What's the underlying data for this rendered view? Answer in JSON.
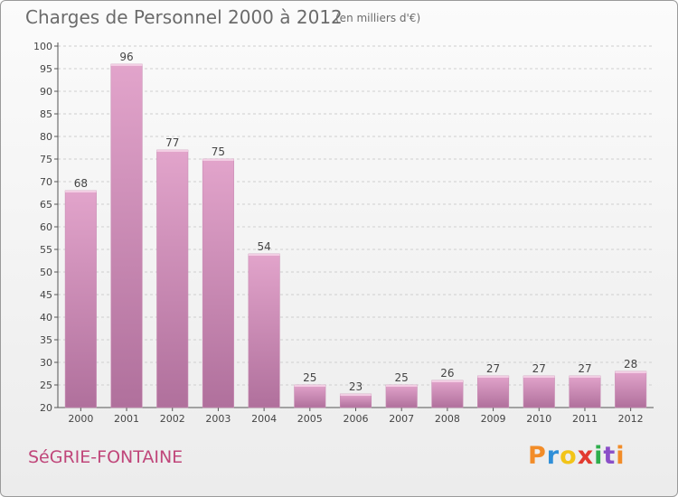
{
  "header": {
    "title": "Charges de Personnel 2000 à 2012",
    "subtitle": "(en milliers d'€)"
  },
  "footer": {
    "commune": "SéGRIE-FONTAINE",
    "logo_text": "Proxiti"
  },
  "colors": {
    "bar_top": "#e2a4cb",
    "bar_bottom": "#b0709c",
    "commune_text": "#c0467a",
    "logo_letters": [
      "#f28c28",
      "#2f8fd8",
      "#f2c418",
      "#e23a2f",
      "#2fae4d",
      "#8a4fc8",
      "#f28c28"
    ]
  },
  "chart_data": {
    "type": "bar",
    "title": "Charges de Personnel 2000 à 2012",
    "subtitle": "(en milliers d'€)",
    "xlabel": "",
    "ylabel": "",
    "categories": [
      "2000",
      "2001",
      "2002",
      "2003",
      "2004",
      "2005",
      "2006",
      "2007",
      "2008",
      "2009",
      "2010",
      "2011",
      "2012"
    ],
    "values": [
      68,
      96,
      77,
      75,
      54,
      25,
      23,
      25,
      26,
      27,
      27,
      27,
      28
    ],
    "ylim": [
      20,
      100
    ],
    "yticks": [
      20,
      25,
      30,
      35,
      40,
      45,
      50,
      55,
      60,
      65,
      70,
      75,
      80,
      85,
      90,
      95,
      100
    ],
    "grid": true,
    "legend": "none"
  }
}
